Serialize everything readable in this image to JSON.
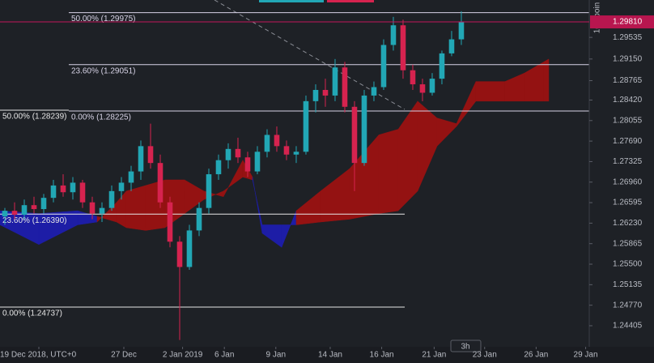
{
  "chart_data": {
    "type": "candlestick",
    "ylim": [
      1.2403,
      1.302
    ],
    "xlim": [
      -0.5,
      60.17
    ],
    "yticks": [
      1.29535,
      {
        "value": 1.2915,
        "label": "1.29150"
      },
      1.28765,
      {
        "value": 1.2842,
        "label": "1.28420"
      },
      1.28055,
      {
        "value": 1.2769,
        "label": "1.27690"
      },
      1.27325,
      {
        "value": 1.2696,
        "label": "1.26960"
      },
      1.26595,
      {
        "value": 1.2623,
        "label": "1.26230"
      },
      1.25865,
      {
        "value": 1.255,
        "label": "1.25500"
      },
      1.25135,
      {
        "value": 1.2477,
        "label": "1.24770"
      },
      1.24405
    ],
    "xticks": [
      {
        "value": 3.5,
        "label": "19 Dec 2018, UTC+0"
      },
      {
        "value": 12.25,
        "label": "27 Dec"
      },
      {
        "value": 18.3,
        "label": "2 Jan 2019"
      },
      {
        "value": 22.6,
        "label": "6 Jan"
      },
      {
        "value": 27.9,
        "label": "9 Jan"
      },
      {
        "value": 33.5,
        "label": "14 Jan"
      },
      {
        "value": 38.8,
        "label": "16 Jan"
      },
      {
        "value": 44.2,
        "label": "21 Jan"
      },
      {
        "value": 49.4,
        "label": "23 Jan"
      },
      {
        "value": 54.7,
        "label": "26 Jan"
      },
      {
        "value": 59.8,
        "label": "29 Jan"
      }
    ],
    "up_color": "#22a7b5",
    "down_color": "#d6234f",
    "candles": {
      "open": [
        1.2635,
        1.2645,
        1.2638,
        1.2655,
        1.2648,
        1.2668,
        1.269,
        1.2678,
        1.2695,
        1.266,
        1.264,
        1.265,
        1.268,
        1.2695,
        1.2715,
        1.276,
        1.273,
        1.266,
        1.259,
        1.2545,
        1.261,
        1.265,
        1.271,
        1.2735,
        1.2755,
        1.274,
        1.2715,
        1.275,
        1.278,
        1.276,
        1.2745,
        1.275,
        1.284,
        1.286,
        1.285,
        1.29,
        1.283,
        1.273,
        1.285,
        1.2865,
        1.294,
        1.2975,
        1.2895,
        1.287,
        1.2855,
        1.288,
        1.2925,
        1.295
      ],
      "high": [
        1.265,
        1.266,
        1.2665,
        1.267,
        1.2675,
        1.27,
        1.271,
        1.2705,
        1.27,
        1.267,
        1.266,
        1.269,
        1.2705,
        1.2725,
        1.277,
        1.28,
        1.2745,
        1.267,
        1.26,
        1.262,
        1.266,
        1.272,
        1.2745,
        1.2765,
        1.2775,
        1.275,
        1.276,
        1.279,
        1.2795,
        1.277,
        1.276,
        1.285,
        1.287,
        1.288,
        1.2915,
        1.291,
        1.284,
        1.286,
        1.2875,
        1.295,
        1.299,
        1.2985,
        1.2905,
        1.288,
        1.289,
        1.293,
        1.2965,
        1.3
      ],
      "low": [
        1.262,
        1.263,
        1.263,
        1.264,
        1.264,
        1.266,
        1.267,
        1.2665,
        1.265,
        1.263,
        1.2625,
        1.2645,
        1.2665,
        1.268,
        1.27,
        1.272,
        1.265,
        1.258,
        1.2415,
        1.254,
        1.26,
        1.264,
        1.27,
        1.272,
        1.273,
        1.2705,
        1.271,
        1.274,
        1.275,
        1.2735,
        1.273,
        1.2745,
        1.282,
        1.283,
        1.284,
        1.282,
        1.268,
        1.2725,
        1.284,
        1.286,
        1.293,
        1.288,
        1.286,
        1.284,
        1.285,
        1.287,
        1.292,
        1.294
      ],
      "close": [
        1.2645,
        1.2638,
        1.2655,
        1.2648,
        1.2668,
        1.269,
        1.2678,
        1.2695,
        1.266,
        1.264,
        1.265,
        1.268,
        1.2695,
        1.2715,
        1.276,
        1.273,
        1.266,
        1.259,
        1.2545,
        1.261,
        1.265,
        1.271,
        1.2735,
        1.2755,
        1.274,
        1.2715,
        1.275,
        1.278,
        1.276,
        1.2745,
        1.275,
        1.284,
        1.286,
        1.285,
        1.29,
        1.283,
        1.273,
        1.285,
        1.2865,
        1.294,
        1.2975,
        1.2895,
        1.287,
        1.2855,
        1.288,
        1.2925,
        1.295,
        1.2981
      ]
    },
    "cloud": {
      "x": [
        -0.5,
        3.5,
        7.5,
        9.5,
        11.5,
        12.5,
        14.5,
        16.5,
        18.5,
        20.5,
        22.5,
        24.5,
        25.5,
        26.5,
        28.5,
        30,
        32.5,
        35.5,
        38.5,
        40.5,
        42.5,
        44.5,
        46.5,
        48.5,
        51.5,
        53.5,
        55.5,
        56
      ],
      "span_a": [
        1.2645,
        1.264,
        1.2645,
        1.2635,
        1.2625,
        1.2615,
        1.261,
        1.2615,
        1.264,
        1.2665,
        1.268,
        1.2705,
        1.27,
        1.262,
        1.262,
        1.262,
        1.2625,
        1.263,
        1.264,
        1.2645,
        1.268,
        1.276,
        1.2795,
        1.284,
        1.284,
        1.284,
        1.284,
        1.284
      ],
      "span_b": [
        1.262,
        1.2585,
        1.262,
        1.2625,
        1.266,
        1.268,
        1.269,
        1.27,
        1.27,
        1.268,
        1.267,
        1.2735,
        1.2705,
        1.2605,
        1.258,
        1.2645,
        1.268,
        1.272,
        1.278,
        1.279,
        1.284,
        1.281,
        1.28,
        1.2875,
        1.2875,
        1.289,
        1.291,
        1.2915
      ],
      "up_color": "#1d1da6",
      "down_color": "#941212"
    },
    "fib_levels": [
      {
        "label": "50.00% (1.29975)",
        "value": 1.29975,
        "x": [
          6.58,
          60.17
        ],
        "color": "#d7d3e6"
      },
      {
        "label": "23.60% (1.29051)",
        "value": 1.29051,
        "x": [
          6.58,
          60.17
        ],
        "color": "#d7d3e6"
      },
      {
        "label": "0.00% (1.28225)",
        "value": 1.28225,
        "x": [
          6.58,
          60.17
        ],
        "color": "#d7d3e6"
      },
      {
        "label": "50.00% (1.28239)",
        "value": 1.28239,
        "x": [
          -0.5,
          6.58
        ],
        "color": "#e6e6e6"
      },
      {
        "label": "23.60% (1.26390)",
        "value": 1.2639,
        "x": [
          -0.5,
          41.17
        ],
        "color": "#e6e6e6"
      },
      {
        "label": "0.00% (1.24737)",
        "value": 1.24737,
        "x": [
          -0.5,
          41.17
        ],
        "color": "#e6e6e6"
      }
    ],
    "current_price": {
      "value": 1.2981,
      "label": "1.29810"
    },
    "ruler_label": "100 poin",
    "interval": "3h"
  }
}
